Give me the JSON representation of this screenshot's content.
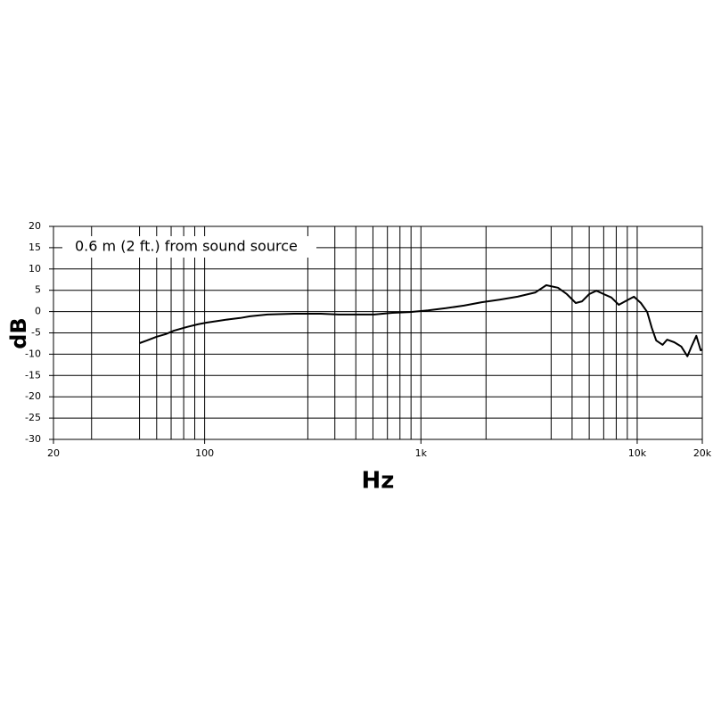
{
  "chart_data": {
    "type": "line",
    "annotation": "0.6 m (2 ft.) from sound source",
    "xlabel": "Hz",
    "ylabel": "dB",
    "x": [
      50,
      54,
      60,
      66,
      72,
      83,
      93,
      102,
      115,
      130,
      146,
      162,
      195,
      259,
      345,
      416,
      503,
      609,
      737,
      892,
      1079,
      1305,
      1580,
      1911,
      2312,
      2798,
      3386,
      3797,
      4300,
      4730,
      5200,
      5560,
      6000,
      6480,
      7000,
      7600,
      8220,
      8790,
      9660,
      10400,
      11130,
      11680,
      12250,
      13110,
      13750,
      14830,
      15980,
      17070,
      17900,
      18770,
      19670,
      20000
    ],
    "series": [
      {
        "color": "#000000",
        "values": [
          -7.4,
          -6.8,
          -5.9,
          -5.3,
          -4.5,
          -3.6,
          -3.0,
          -2.6,
          -2.2,
          -1.8,
          -1.5,
          -1.1,
          -0.7,
          -0.5,
          -0.5,
          -0.7,
          -0.7,
          -0.7,
          -0.3,
          -0.1,
          0.3,
          0.8,
          1.4,
          2.2,
          2.8,
          3.5,
          4.5,
          6.2,
          5.6,
          4.1,
          2.0,
          2.4,
          4.1,
          4.9,
          4.1,
          3.3,
          1.6,
          2.4,
          3.5,
          2.0,
          -0.1,
          -3.8,
          -6.8,
          -7.8,
          -6.6,
          -7.2,
          -8.2,
          -10.5,
          -8.0,
          -5.7,
          -9.1,
          -8.9
        ]
      }
    ],
    "xlog": true,
    "xlim": [
      20,
      20000
    ],
    "xticks": [
      20,
      100,
      {
        "value": 1000,
        "label": "1k"
      },
      {
        "value": 10000,
        "label": "10k"
      },
      {
        "value": 20000,
        "label": "20k"
      }
    ],
    "xgrid": [
      30,
      50,
      60,
      70,
      80,
      90,
      100,
      300,
      400,
      500,
      600,
      700,
      800,
      900,
      1000,
      2000,
      4000,
      5000,
      6000,
      7000,
      8000,
      9000,
      10000
    ],
    "ylim": [
      -30,
      20
    ],
    "yticks": [
      20,
      15,
      10,
      5,
      0,
      -5,
      -10,
      -15,
      -20,
      -25,
      -30
    ],
    "grid": true
  }
}
